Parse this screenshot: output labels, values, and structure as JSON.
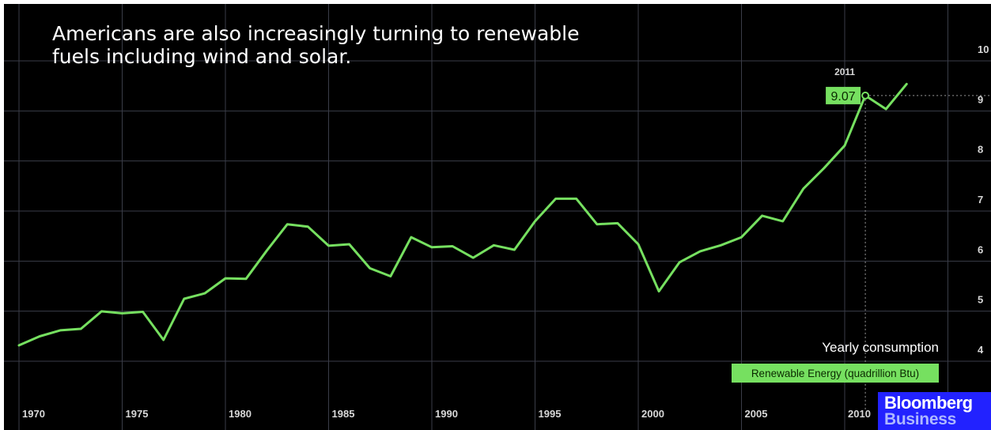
{
  "headline": "Americans are also increasingly turning to renewable fuels including wind and solar.",
  "legend": {
    "title": "Yearly consumption",
    "series_label": "Renewable Energy (quadrillion Btu)"
  },
  "logo": {
    "line1": "Bloomberg",
    "line2": "Business"
  },
  "colors": {
    "background": "#000000",
    "series": "#76e060",
    "grid": "#3a3d48",
    "axis_text": "#d8d8d8",
    "logo_bg": "#2222ff"
  },
  "chart_data": {
    "type": "line",
    "title": "",
    "xlabel": "",
    "ylabel": "",
    "xlim": [
      1970,
      2017
    ],
    "ylim": [
      3.4,
      10.4
    ],
    "x_ticks": [
      1970,
      1975,
      1980,
      1985,
      1990,
      1995,
      2000,
      2005,
      2010
    ],
    "y_ticks": [
      4,
      5,
      6,
      7,
      8,
      9,
      10
    ],
    "grid": true,
    "series": [
      {
        "name": "Renewable Energy (quadrillion Btu)",
        "x": [
          1970,
          1971,
          1972,
          1973,
          1974,
          1975,
          1976,
          1977,
          1978,
          1979,
          1980,
          1981,
          1982,
          1983,
          1984,
          1985,
          1986,
          1987,
          1988,
          1989,
          1990,
          1991,
          1992,
          1993,
          1994,
          1995,
          1996,
          1997,
          1998,
          1999,
          2000,
          2001,
          2002,
          2003,
          2004,
          2005,
          2006,
          2007,
          2008,
          2009,
          2010,
          2011,
          2012,
          2013
        ],
        "y": [
          4.08,
          4.26,
          4.38,
          4.41,
          4.76,
          4.72,
          4.75,
          4.19,
          5.01,
          5.12,
          5.42,
          5.41,
          5.97,
          6.5,
          6.45,
          6.07,
          6.1,
          5.62,
          5.46,
          6.24,
          6.04,
          6.06,
          5.83,
          6.08,
          5.99,
          6.56,
          7.01,
          7.01,
          6.5,
          6.52,
          6.1,
          5.16,
          5.74,
          5.96,
          6.08,
          6.24,
          6.67,
          6.56,
          7.21,
          7.62,
          8.07,
          9.07,
          8.8,
          9.3
        ]
      }
    ],
    "annotations": [
      {
        "year_label": "2011",
        "value_label": "9.07",
        "x": 2011,
        "y": 9.07
      }
    ]
  }
}
